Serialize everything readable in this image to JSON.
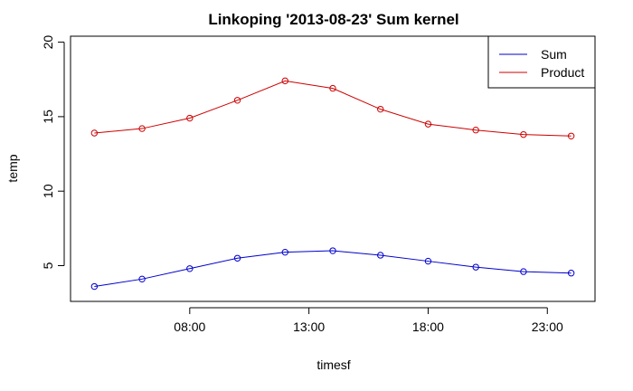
{
  "chart_data": {
    "type": "line",
    "title": "Linkoping '2013-08-23' Sum kernel",
    "xlabel": "timesf",
    "ylabel": "temp",
    "x": [
      "04:00",
      "06:00",
      "08:00",
      "10:00",
      "12:00",
      "14:00",
      "16:00",
      "18:00",
      "20:00",
      "22:00",
      "24:00"
    ],
    "x_tick_labels": [
      "08:00",
      "13:00",
      "18:00",
      "23:00"
    ],
    "x_tick_hours": [
      8,
      13,
      18,
      23
    ],
    "xlim_hours": [
      3,
      25
    ],
    "ylim": [
      2.6,
      20.4
    ],
    "y_ticks": [
      5,
      10,
      15,
      20
    ],
    "series": [
      {
        "name": "Sum",
        "color": "#0000cc",
        "values": [
          3.6,
          4.1,
          4.8,
          5.5,
          5.9,
          6.0,
          5.7,
          5.3,
          4.9,
          4.6,
          4.5
        ]
      },
      {
        "name": "Product",
        "color": "#cc0000",
        "values": [
          13.9,
          14.2,
          14.9,
          16.1,
          17.4,
          16.9,
          15.5,
          14.5,
          14.1,
          13.8,
          13.7
        ]
      }
    ],
    "legend_position": "top-right",
    "grid": false,
    "markers": "open-circle"
  }
}
